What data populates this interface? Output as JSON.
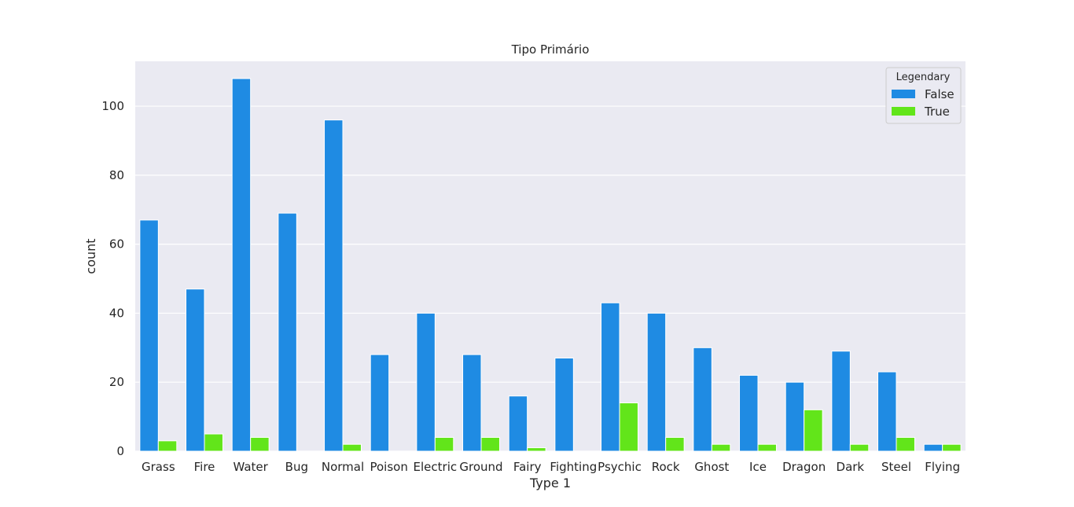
{
  "chart_data": {
    "type": "bar",
    "title": "Tipo Primário",
    "xlabel": "Type 1",
    "ylabel": "count",
    "ylim": [
      0,
      113
    ],
    "yticks": [
      0,
      20,
      40,
      60,
      80,
      100
    ],
    "grid": true,
    "legend": {
      "title": "Legendary",
      "placement": "top-right"
    },
    "categories": [
      "Grass",
      "Fire",
      "Water",
      "Bug",
      "Normal",
      "Poison",
      "Electric",
      "Ground",
      "Fairy",
      "Fighting",
      "Psychic",
      "Rock",
      "Ghost",
      "Ice",
      "Dragon",
      "Dark",
      "Steel",
      "Flying"
    ],
    "series": [
      {
        "name": "False",
        "color": "#1f8be3",
        "values": [
          67,
          47,
          108,
          69,
          96,
          28,
          40,
          28,
          16,
          27,
          43,
          40,
          30,
          22,
          20,
          29,
          23,
          2
        ]
      },
      {
        "name": "True",
        "color": "#62e51a",
        "values": [
          3,
          5,
          4,
          0,
          2,
          0,
          4,
          4,
          1,
          0,
          14,
          4,
          2,
          2,
          12,
          2,
          4,
          2
        ]
      }
    ]
  }
}
